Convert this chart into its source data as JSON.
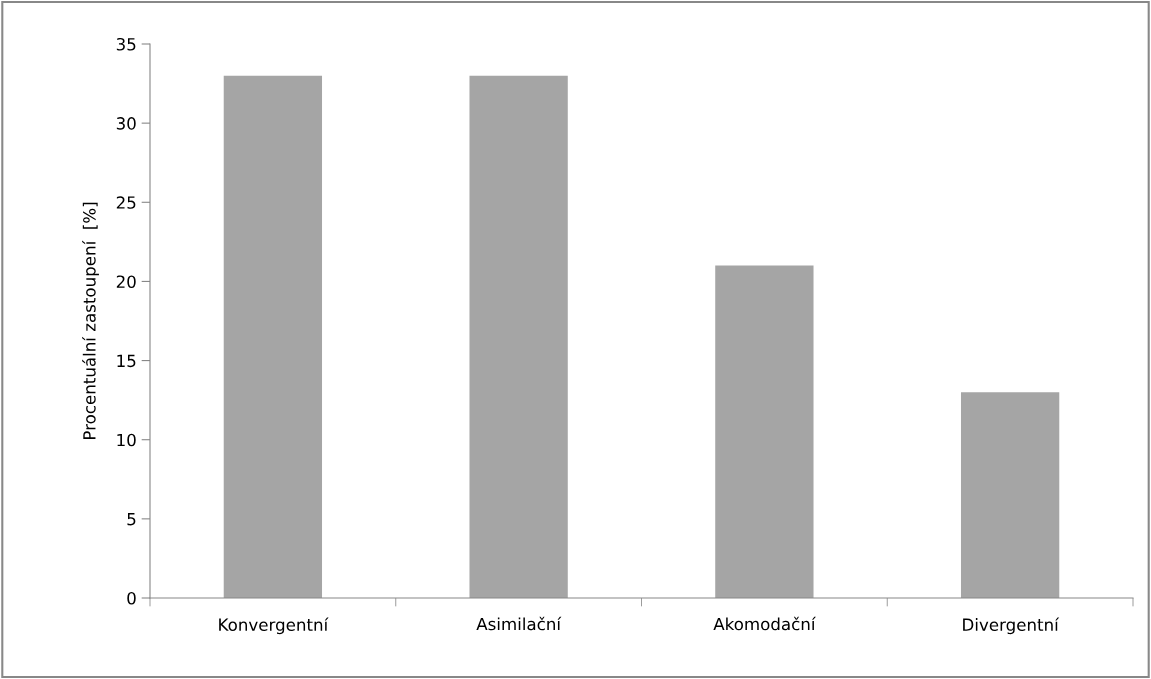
{
  "chart_data": {
    "type": "bar",
    "ylabel": "Procentuální zastoupení  [%]",
    "categories": [
      "Konvergentní",
      "Asimilační",
      "Akomodační",
      "Divergentní"
    ],
    "values": [
      33,
      33,
      21,
      13
    ],
    "color": "#a5a5a5",
    "ylim": [
      0,
      35
    ],
    "yticks": [
      0,
      5,
      10,
      15,
      20,
      25,
      30,
      35
    ],
    "grid": false,
    "legend": false
  }
}
